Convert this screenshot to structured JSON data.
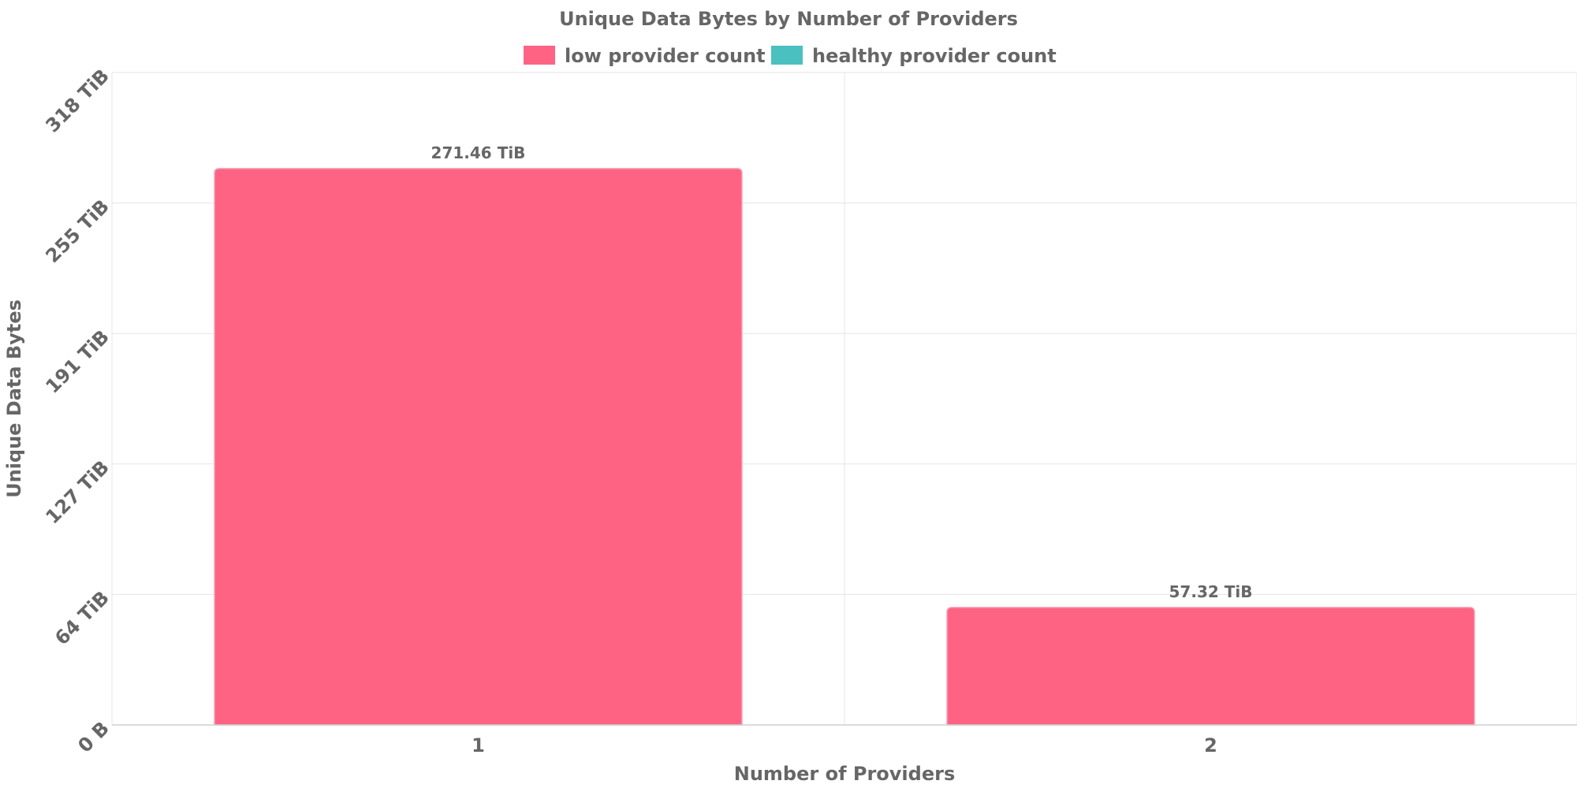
{
  "chart_data": {
    "type": "bar",
    "title": "Unique Data Bytes by Number of Providers",
    "xlabel": "Number of Providers",
    "ylabel": "Unique Data Bytes",
    "categories": [
      "1",
      "2"
    ],
    "series": [
      {
        "name": "low provider count",
        "color": "#ff6384",
        "values": [
          271.46,
          57.32
        ],
        "value_labels": [
          "271.46 TiB",
          "57.32 TiB"
        ]
      },
      {
        "name": "healthy provider count",
        "color": "#4bc0c0",
        "values": [
          0,
          0
        ],
        "value_labels": [
          "",
          ""
        ]
      }
    ],
    "y_unit": "TiB",
    "ylim": [
      0,
      318.3
    ],
    "y_ticks": [
      {
        "value": 0,
        "label": "0 B"
      },
      {
        "value": 63.66,
        "label": "64 TiB"
      },
      {
        "value": 127.32,
        "label": "127 TiB"
      },
      {
        "value": 190.98,
        "label": "191 TiB"
      },
      {
        "value": 254.64,
        "label": "255 TiB"
      },
      {
        "value": 318.3,
        "label": "318 TiB"
      }
    ],
    "grid": true,
    "legend_position": "top-center"
  }
}
